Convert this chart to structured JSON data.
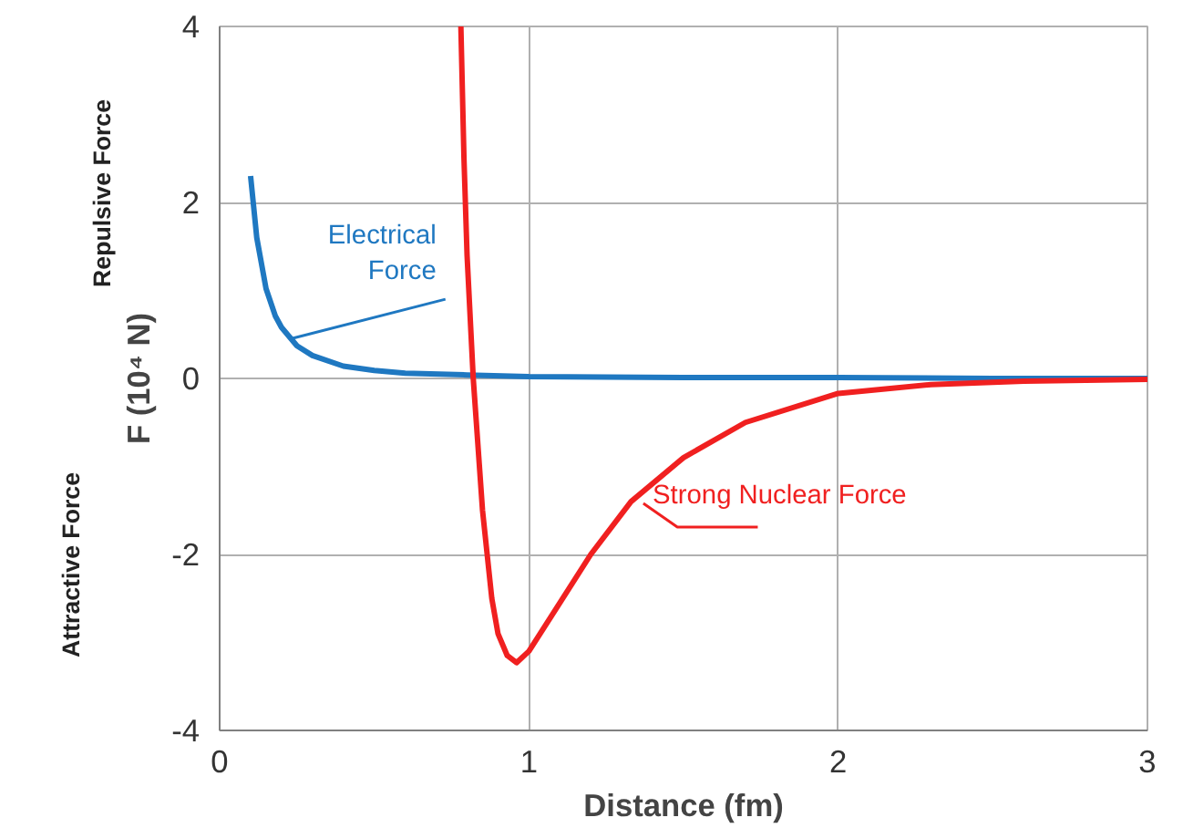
{
  "chart_data": {
    "type": "line",
    "xlabel": "Distance (fm)",
    "ylabel": "F (10⁴ N)",
    "xlim": [
      0,
      3
    ],
    "ylim": [
      -4,
      4
    ],
    "xticks": [
      0,
      1,
      2,
      3
    ],
    "yticks": [
      -4,
      -2,
      0,
      2,
      4
    ],
    "grid": true,
    "line_style": "solid",
    "series": [
      {
        "color": "#1f78c1",
        "x": [
          0.1,
          0.12,
          0.15,
          0.18,
          0.2,
          0.25,
          0.3,
          0.4,
          0.5,
          0.6,
          0.8,
          1.0,
          1.5,
          2.0,
          2.5,
          3.0
        ],
        "values": [
          2.3,
          1.6,
          1.02,
          0.71,
          0.58,
          0.37,
          0.26,
          0.14,
          0.09,
          0.06,
          0.04,
          0.02,
          0.01,
          0.01,
          0.0,
          0.0
        ]
      },
      {
        "color": "#f02020",
        "x": [
          0.78,
          0.79,
          0.8,
          0.82,
          0.85,
          0.88,
          0.9,
          0.93,
          0.96,
          1.0,
          1.1,
          1.2,
          1.33,
          1.5,
          1.7,
          2.0,
          2.3,
          2.6,
          3.0
        ],
        "values": [
          4.0,
          2.5,
          1.4,
          0.0,
          -1.5,
          -2.5,
          -2.9,
          -3.15,
          -3.23,
          -3.1,
          -2.55,
          -2.0,
          -1.4,
          -0.9,
          -0.5,
          -0.17,
          -0.07,
          -0.03,
          -0.01
        ]
      }
    ],
    "annotations": [
      {
        "text": "Electrical Force",
        "x": 0.23,
        "y": 0.45
      },
      {
        "text": "Strong Nuclear Force",
        "x": 1.34,
        "y": -1.39
      },
      "Repulsive Force",
      "Attractive Force"
    ]
  }
}
